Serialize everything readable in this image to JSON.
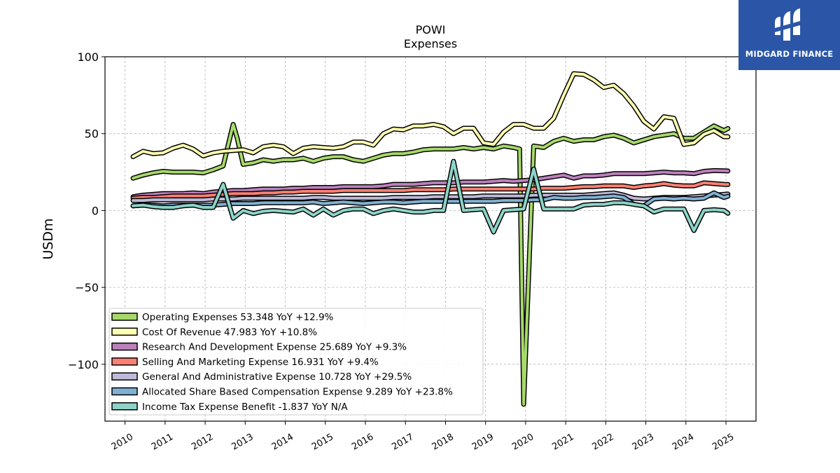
{
  "chart_data": {
    "type": "line",
    "title": "POWI",
    "subtitle": "Expenses",
    "ylabel": "USDm",
    "xlabel": "",
    "ylim": [
      -137,
      100
    ],
    "xlim": [
      2009.5,
      2025.75
    ],
    "yticks": [
      100,
      50,
      0,
      -50,
      -100
    ],
    "ytick_labels": [
      "100",
      "50",
      "0",
      "−50",
      "−100"
    ],
    "xticks": [
      2010,
      2011,
      2012,
      2013,
      2014,
      2015,
      2016,
      2017,
      2018,
      2019,
      2020,
      2021,
      2022,
      2023,
      2024,
      2025
    ],
    "xtick_labels": [
      "2010",
      "2011",
      "2012",
      "2013",
      "2014",
      "2015",
      "2016",
      "2017",
      "2018",
      "2019",
      "2020",
      "2021",
      "2022",
      "2023",
      "2024",
      "2025"
    ],
    "grid": true,
    "legend_position": "lower-left",
    "series": [
      {
        "name": "Operating Expenses",
        "legend": "Operating Expenses  53.348 YoY +12.9%",
        "color": "#a6d96a",
        "x": [
          2010.2,
          2010.45,
          2010.7,
          2010.95,
          2011.2,
          2011.45,
          2011.7,
          2011.95,
          2012.2,
          2012.45,
          2012.7,
          2012.8,
          2012.95,
          2013.2,
          2013.45,
          2013.7,
          2013.95,
          2014.2,
          2014.45,
          2014.7,
          2014.95,
          2015.2,
          2015.45,
          2015.7,
          2015.95,
          2016.2,
          2016.45,
          2016.7,
          2016.95,
          2017.2,
          2017.45,
          2017.7,
          2017.95,
          2018.2,
          2018.45,
          2018.7,
          2018.95,
          2019.2,
          2019.45,
          2019.7,
          2019.85,
          2019.95,
          2020.2,
          2020.45,
          2020.7,
          2020.95,
          2021.2,
          2021.45,
          2021.7,
          2021.95,
          2022.2,
          2022.45,
          2022.7,
          2022.95,
          2023.2,
          2023.45,
          2023.7,
          2023.95,
          2024.2,
          2024.45,
          2024.7,
          2024.95,
          2025.05
        ],
        "y": [
          21,
          23,
          24.5,
          25.5,
          25,
          25,
          25,
          24.5,
          26.5,
          29,
          56,
          47,
          30,
          31,
          33,
          32,
          33,
          33,
          34,
          32,
          34,
          35,
          35,
          33,
          32,
          34,
          36,
          37,
          37,
          38,
          39.5,
          40,
          40,
          40,
          41,
          40,
          41,
          40,
          42,
          41,
          40,
          -126,
          42,
          41,
          45,
          47,
          45,
          46,
          46,
          48,
          49,
          47,
          44,
          46,
          48,
          49,
          50,
          47,
          47,
          51,
          55,
          52,
          53.348
        ]
      },
      {
        "name": "Cost Of Revenue",
        "legend": "Cost Of Revenue  47.983 YoY +10.8%",
        "color": "#ffffb3",
        "x": [
          2010.2,
          2010.45,
          2010.7,
          2010.95,
          2011.2,
          2011.45,
          2011.7,
          2011.95,
          2012.2,
          2012.45,
          2012.7,
          2012.95,
          2013.2,
          2013.45,
          2013.7,
          2013.95,
          2014.2,
          2014.45,
          2014.7,
          2014.95,
          2015.2,
          2015.45,
          2015.7,
          2015.95,
          2016.2,
          2016.45,
          2016.7,
          2016.95,
          2017.2,
          2017.45,
          2017.7,
          2017.95,
          2018.2,
          2018.45,
          2018.7,
          2018.95,
          2019.2,
          2019.45,
          2019.7,
          2019.95,
          2020.2,
          2020.45,
          2020.7,
          2020.95,
          2021.2,
          2021.45,
          2021.7,
          2021.95,
          2022.2,
          2022.45,
          2022.7,
          2022.95,
          2023.2,
          2023.45,
          2023.7,
          2023.95,
          2024.2,
          2024.45,
          2024.7,
          2024.95,
          2025.05
        ],
        "y": [
          35,
          38.5,
          37,
          37.5,
          40.5,
          42.5,
          40,
          35.5,
          37.5,
          38.5,
          39,
          39.5,
          37.5,
          41.5,
          42.5,
          41.5,
          37,
          40.5,
          41.5,
          41,
          40.5,
          41.5,
          44.5,
          44.5,
          42.5,
          50,
          53,
          52.5,
          55,
          55,
          56,
          54.5,
          50,
          53.5,
          53.5,
          44,
          43,
          51,
          56,
          56,
          53.5,
          53.5,
          60,
          75,
          89,
          88.5,
          85,
          80,
          81.5,
          76,
          68,
          58,
          53,
          61,
          60,
          43,
          44,
          49.5,
          52,
          48,
          47.983
        ]
      },
      {
        "name": "Research And Development Expense",
        "legend": "Research And Development Expense  25.689 YoY +9.3%",
        "color": "#bc80bd",
        "x": [
          2010.2,
          2010.45,
          2010.7,
          2010.95,
          2011.2,
          2011.45,
          2011.7,
          2011.95,
          2012.2,
          2012.45,
          2012.7,
          2012.95,
          2013.2,
          2013.45,
          2013.7,
          2013.95,
          2014.2,
          2014.45,
          2014.7,
          2014.95,
          2015.2,
          2015.45,
          2015.7,
          2015.95,
          2016.2,
          2016.45,
          2016.7,
          2016.95,
          2017.2,
          2017.45,
          2017.7,
          2017.95,
          2018.2,
          2018.45,
          2018.7,
          2018.95,
          2019.2,
          2019.45,
          2019.7,
          2019.95,
          2020.2,
          2020.45,
          2020.7,
          2020.95,
          2021.2,
          2021.45,
          2021.7,
          2021.95,
          2022.2,
          2022.45,
          2022.7,
          2022.95,
          2023.2,
          2023.45,
          2023.7,
          2023.95,
          2024.2,
          2024.45,
          2024.7,
          2024.95,
          2025.05
        ],
        "y": [
          9,
          10,
          10.5,
          11,
          11,
          11,
          11.5,
          11,
          12,
          12.5,
          13,
          13,
          13.5,
          14,
          14,
          14,
          14.5,
          14.5,
          15,
          15,
          15,
          15.5,
          15.5,
          15.5,
          15.5,
          16,
          17,
          17,
          17,
          17.5,
          18,
          18,
          18,
          18.5,
          18.5,
          18.5,
          19,
          19.5,
          19,
          19.5,
          20,
          21,
          22,
          23,
          21,
          22.5,
          22.5,
          23,
          24,
          24,
          24,
          24,
          24.5,
          25,
          24.5,
          24.5,
          24,
          25.5,
          26,
          25.8,
          25.689
        ]
      },
      {
        "name": "Selling And Marketing Expense",
        "legend": "Selling And Marketing Expense  16.931 YoY +9.4%",
        "color": "#fb8072",
        "x": [
          2010.2,
          2010.45,
          2010.7,
          2010.95,
          2011.2,
          2011.45,
          2011.7,
          2011.95,
          2012.2,
          2012.45,
          2012.7,
          2012.95,
          2013.2,
          2013.45,
          2013.7,
          2013.95,
          2014.2,
          2014.45,
          2014.7,
          2014.95,
          2015.2,
          2015.45,
          2015.7,
          2015.95,
          2016.2,
          2016.45,
          2016.7,
          2016.95,
          2017.2,
          2017.45,
          2017.7,
          2017.95,
          2018.2,
          2018.45,
          2018.7,
          2018.95,
          2019.2,
          2019.45,
          2019.7,
          2019.95,
          2020.2,
          2020.45,
          2020.7,
          2020.95,
          2021.2,
          2021.45,
          2021.7,
          2021.95,
          2022.2,
          2022.45,
          2022.7,
          2022.95,
          2023.2,
          2023.45,
          2023.7,
          2023.95,
          2024.2,
          2024.45,
          2024.7,
          2024.95,
          2025.05
        ],
        "y": [
          8,
          8.5,
          8.5,
          9,
          9.5,
          9.5,
          9.5,
          9.5,
          10,
          10.5,
          11,
          11,
          11,
          11.5,
          11.5,
          12,
          12,
          12.5,
          12.5,
          12.5,
          12.5,
          13,
          13,
          13,
          13,
          13,
          13,
          13,
          13.5,
          13.5,
          13.5,
          13.5,
          14,
          14,
          14,
          14,
          14,
          14,
          14,
          14,
          14,
          14.5,
          14.5,
          14.5,
          15,
          15.5,
          15.5,
          16,
          16,
          16,
          15,
          16,
          16.5,
          17.5,
          16.5,
          16,
          16,
          18,
          17.5,
          17,
          16.931
        ]
      },
      {
        "name": "General And Administrative Expense",
        "legend": "General And Administrative Expense  10.728 YoY +29.5%",
        "color": "#bebada",
        "x": [
          2010.2,
          2010.45,
          2010.7,
          2010.95,
          2011.2,
          2011.45,
          2011.7,
          2011.95,
          2012.2,
          2012.45,
          2012.7,
          2012.95,
          2013.2,
          2013.45,
          2013.7,
          2013.95,
          2014.2,
          2014.45,
          2014.7,
          2014.95,
          2015.2,
          2015.45,
          2015.7,
          2015.95,
          2016.2,
          2016.45,
          2016.7,
          2016.95,
          2017.2,
          2017.45,
          2017.7,
          2017.95,
          2018.2,
          2018.45,
          2018.7,
          2018.95,
          2019.2,
          2019.45,
          2019.7,
          2019.95,
          2020.2,
          2020.45,
          2020.7,
          2020.95,
          2021.2,
          2021.45,
          2021.7,
          2021.95,
          2022.2,
          2022.45,
          2022.7,
          2022.95,
          2023.2,
          2023.45,
          2023.7,
          2023.95,
          2024.2,
          2024.45,
          2024.7,
          2024.95,
          2025.05
        ],
        "y": [
          6.5,
          6.5,
          7,
          7,
          7,
          7,
          7,
          7,
          7.5,
          7.5,
          7.5,
          8,
          8,
          8,
          8,
          8,
          8,
          8,
          8.5,
          8.5,
          8,
          8,
          8,
          8,
          8,
          8,
          8.5,
          8.5,
          8.5,
          8.5,
          9,
          9,
          9,
          9,
          9,
          9.5,
          9.5,
          9.5,
          9.5,
          9.5,
          10,
          10,
          10,
          10,
          10,
          10,
          10.5,
          11,
          11.5,
          10,
          8,
          7.5,
          8,
          8.5,
          8.5,
          8.5,
          9,
          9.5,
          10,
          10.5,
          10.728
        ]
      },
      {
        "name": "Allocated Share Based Compensation Expense",
        "legend": "Allocated Share Based Compensation Expense  9.289 YoY +23.8%",
        "color": "#80b1d3",
        "x": [
          2010.2,
          2010.45,
          2010.7,
          2010.95,
          2011.2,
          2011.45,
          2011.7,
          2011.95,
          2012.2,
          2012.45,
          2012.7,
          2012.95,
          2013.2,
          2013.45,
          2013.7,
          2013.95,
          2014.2,
          2014.45,
          2014.7,
          2014.95,
          2015.2,
          2015.45,
          2015.7,
          2015.95,
          2016.2,
          2016.45,
          2016.7,
          2016.95,
          2017.2,
          2017.45,
          2017.7,
          2017.95,
          2018.2,
          2018.45,
          2018.7,
          2018.95,
          2019.2,
          2019.45,
          2019.7,
          2019.95,
          2020.2,
          2020.45,
          2020.7,
          2020.95,
          2021.2,
          2021.45,
          2021.7,
          2021.95,
          2022.2,
          2022.45,
          2022.7,
          2022.95,
          2023.2,
          2023.45,
          2023.7,
          2023.95,
          2024.2,
          2024.45,
          2024.7,
          2024.95,
          2025.05
        ],
        "y": [
          3,
          3.5,
          3.5,
          3,
          3.5,
          3.5,
          3.5,
          3.5,
          3.5,
          4,
          4.5,
          4.5,
          4.5,
          5,
          5,
          5,
          5,
          5,
          5.5,
          4.5,
          5,
          5.5,
          5,
          4.5,
          5,
          5.5,
          5.5,
          5,
          5.5,
          6,
          6,
          6,
          6,
          6,
          6,
          6,
          6,
          6.5,
          6.5,
          6.5,
          7,
          7,
          8.5,
          8,
          8,
          8.5,
          8.5,
          9,
          9.5,
          8.5,
          4,
          3,
          7.5,
          8,
          7.5,
          8,
          7.5,
          8,
          11.5,
          8.5,
          9.289
        ]
      },
      {
        "name": "Income Tax Expense Benefit",
        "legend": "Income Tax Expense Benefit  -1.837 YoY N/A",
        "color": "#8dd3c7",
        "x": [
          2010.2,
          2010.45,
          2010.7,
          2010.95,
          2011.2,
          2011.45,
          2011.7,
          2011.95,
          2012.2,
          2012.45,
          2012.7,
          2012.95,
          2013.2,
          2013.45,
          2013.7,
          2013.95,
          2014.2,
          2014.45,
          2014.7,
          2014.95,
          2015.2,
          2015.45,
          2015.7,
          2015.95,
          2016.2,
          2016.45,
          2016.7,
          2016.95,
          2017.2,
          2017.45,
          2017.7,
          2017.95,
          2018.2,
          2018.45,
          2018.7,
          2018.95,
          2019.2,
          2019.45,
          2019.7,
          2019.95,
          2020.2,
          2020.45,
          2020.7,
          2020.95,
          2021.2,
          2021.45,
          2021.7,
          2021.95,
          2022.2,
          2022.45,
          2022.7,
          2022.95,
          2023.2,
          2023.45,
          2023.7,
          2023.95,
          2024.2,
          2024.45,
          2024.7,
          2024.95,
          2025.05
        ],
        "y": [
          3,
          3.5,
          2.5,
          2,
          2,
          3,
          3.5,
          2,
          2,
          17,
          -5,
          0,
          -2,
          -0.5,
          0,
          -0.5,
          -1,
          1,
          -3,
          1,
          -3,
          0,
          1,
          1,
          -2,
          0,
          1,
          0,
          -1,
          -1,
          0,
          0,
          32,
          0,
          0.5,
          1,
          -14,
          0,
          0.5,
          1,
          27,
          1,
          1,
          1,
          1,
          3.5,
          4,
          4,
          5,
          5,
          4,
          3,
          -1,
          1,
          1,
          1,
          -13,
          0,
          0.5,
          0,
          -1.837
        ]
      }
    ]
  },
  "logo": {
    "text": "MIDGARD FINANCE",
    "color": "#2b56a8"
  }
}
